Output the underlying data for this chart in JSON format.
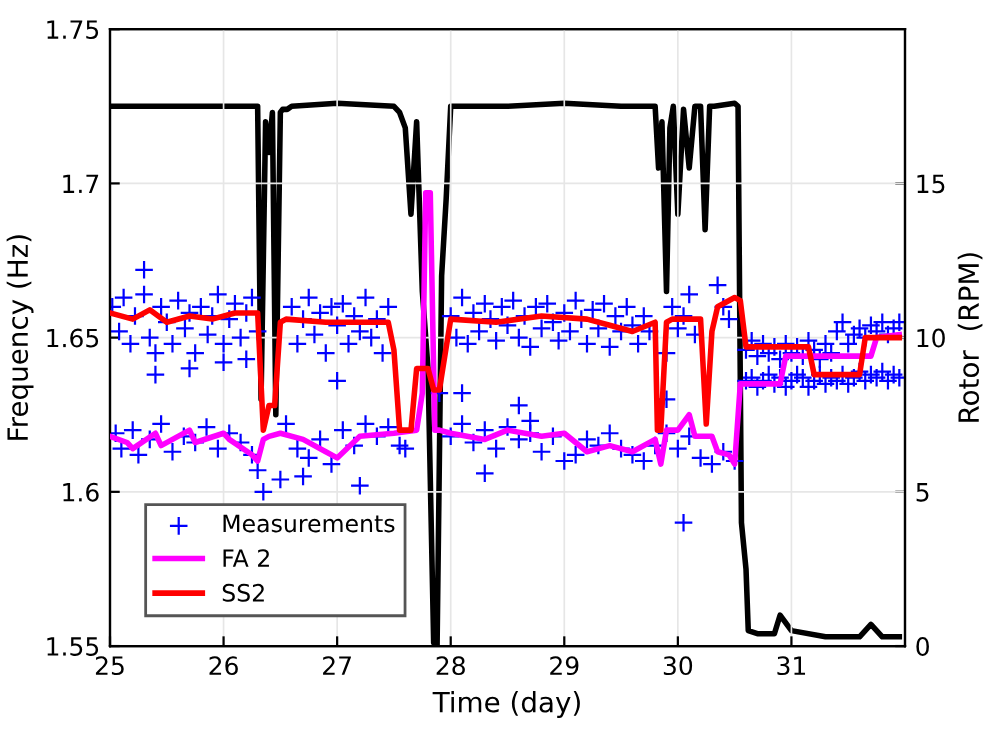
{
  "chart_data": {
    "type": "line",
    "xlabel": "Time (day)",
    "ylabel": "Frequency (Hz)",
    "y2label": "Rotor  (RPM)",
    "xlim": [
      25,
      32
    ],
    "xticks": [
      25,
      26,
      27,
      28,
      29,
      30,
      31
    ],
    "ylim": [
      1.55,
      1.75
    ],
    "yticks": [
      1.55,
      1.6,
      1.65,
      1.7,
      1.75
    ],
    "y2lim": [
      0,
      20
    ],
    "y2ticks": [
      0,
      5,
      10,
      15
    ],
    "grid": true,
    "legend": "bottom left",
    "series": [
      {
        "name": "Measurements",
        "type": "scatter",
        "marker": "cross",
        "color": "#0000ff",
        "x": [
          25.02,
          25.08,
          25.12,
          25.18,
          25.22,
          25.3,
          25.35,
          25.4,
          25.45,
          25.5,
          25.55,
          25.6,
          25.66,
          25.7,
          25.75,
          25.8,
          25.86,
          25.9,
          25.95,
          26.0,
          26.05,
          26.1,
          26.15,
          26.2,
          26.25,
          26.3,
          26.6,
          26.65,
          26.7,
          26.75,
          26.8,
          26.85,
          26.9,
          26.95,
          27.0,
          27.05,
          27.1,
          27.15,
          27.2,
          27.25,
          27.3,
          27.35,
          27.4,
          27.45,
          28.0,
          28.05,
          28.1,
          28.15,
          28.2,
          28.25,
          28.3,
          28.35,
          28.4,
          28.45,
          28.5,
          28.55,
          28.6,
          28.65,
          28.7,
          28.75,
          28.8,
          28.85,
          28.9,
          28.95,
          29.0,
          29.05,
          29.1,
          29.15,
          29.2,
          29.25,
          29.3,
          29.35,
          29.4,
          29.45,
          29.5,
          29.55,
          29.6,
          29.65,
          29.7,
          29.75,
          29.95,
          30.0,
          30.05,
          30.1,
          30.15,
          30.35,
          30.4,
          30.45,
          25.05,
          25.1,
          25.2,
          25.25,
          25.35,
          25.45,
          25.55,
          25.65,
          25.75,
          25.85,
          25.95,
          26.05,
          26.15,
          26.25,
          26.3,
          26.55,
          26.65,
          26.75,
          26.85,
          26.95,
          27.05,
          27.15,
          27.25,
          27.35,
          27.45,
          27.55,
          28.0,
          28.1,
          28.2,
          28.3,
          28.4,
          28.5,
          28.6,
          28.7,
          28.8,
          28.9,
          29.0,
          29.1,
          29.2,
          29.3,
          29.4,
          29.5,
          29.6,
          29.7,
          29.8,
          29.9,
          30.0,
          30.1,
          30.2,
          30.3,
          30.4,
          30.5,
          25.4,
          25.7,
          26.0,
          26.35,
          26.5,
          26.7,
          27.2,
          27.6,
          27.9,
          28.3,
          28.6,
          28.7,
          29.9,
          30.05,
          25.3,
          26.2,
          27.0,
          28.1,
          29.9,
          30.6,
          30.65,
          30.7,
          30.75,
          30.8,
          30.85,
          30.9,
          30.95,
          31.0,
          31.05,
          31.1,
          31.15,
          31.2,
          31.25,
          31.3,
          31.35,
          31.4,
          31.45,
          31.5,
          31.55,
          31.6,
          31.65,
          31.7,
          31.75,
          31.8,
          31.85,
          31.9,
          31.95,
          30.6,
          30.65,
          30.7,
          30.75,
          30.8,
          30.85,
          30.9,
          30.95,
          31.0,
          31.05,
          31.1,
          31.15,
          31.2,
          31.25,
          31.3,
          31.35,
          31.4,
          31.45,
          31.5,
          31.55,
          31.6,
          31.65,
          31.7,
          31.75,
          31.8,
          31.85,
          31.9,
          31.95
        ],
        "values": [
          1.66,
          1.652,
          1.663,
          1.648,
          1.657,
          1.664,
          1.65,
          1.645,
          1.66,
          1.655,
          1.648,
          1.662,
          1.653,
          1.658,
          1.645,
          1.66,
          1.651,
          1.657,
          1.664,
          1.648,
          1.656,
          1.661,
          1.65,
          1.658,
          1.663,
          1.652,
          1.66,
          1.648,
          1.656,
          1.663,
          1.651,
          1.658,
          1.645,
          1.66,
          1.654,
          1.661,
          1.648,
          1.657,
          1.652,
          1.663,
          1.65,
          1.656,
          1.645,
          1.66,
          1.657,
          1.65,
          1.663,
          1.648,
          1.658,
          1.652,
          1.661,
          1.656,
          1.649,
          1.66,
          1.654,
          1.662,
          1.65,
          1.657,
          1.647,
          1.66,
          1.653,
          1.661,
          1.655,
          1.649,
          1.658,
          1.652,
          1.662,
          1.656,
          1.648,
          1.659,
          1.653,
          1.661,
          1.647,
          1.657,
          1.652,
          1.66,
          1.654,
          1.648,
          1.657,
          1.652,
          1.66,
          1.653,
          1.657,
          1.664,
          1.651,
          1.667,
          1.66,
          1.656,
          1.619,
          1.614,
          1.62,
          1.612,
          1.617,
          1.622,
          1.613,
          1.618,
          1.616,
          1.621,
          1.614,
          1.619,
          1.616,
          1.612,
          1.607,
          1.622,
          1.614,
          1.611,
          1.617,
          1.609,
          1.62,
          1.615,
          1.622,
          1.618,
          1.621,
          1.615,
          1.618,
          1.622,
          1.616,
          1.62,
          1.614,
          1.621,
          1.617,
          1.619,
          1.613,
          1.618,
          1.61,
          1.612,
          1.617,
          1.615,
          1.619,
          1.614,
          1.612,
          1.61,
          1.615,
          1.619,
          1.614,
          1.618,
          1.611,
          1.609,
          1.613,
          1.61,
          1.638,
          1.64,
          1.642,
          1.6,
          1.604,
          1.605,
          1.602,
          1.614,
          1.632,
          1.606,
          1.628,
          1.623,
          1.645,
          1.59,
          1.672,
          1.643,
          1.636,
          1.632,
          1.63,
          1.646,
          1.649,
          1.644,
          1.648,
          1.645,
          1.647,
          1.643,
          1.648,
          1.645,
          1.647,
          1.644,
          1.649,
          1.646,
          1.643,
          1.648,
          1.645,
          1.652,
          1.655,
          1.648,
          1.651,
          1.653,
          1.65,
          1.654,
          1.652,
          1.655,
          1.651,
          1.653,
          1.655,
          1.636,
          1.637,
          1.634,
          1.636,
          1.638,
          1.635,
          1.637,
          1.634,
          1.636,
          1.638,
          1.637,
          1.634,
          1.636,
          1.638,
          1.635,
          1.637,
          1.636,
          1.638,
          1.635,
          1.637,
          1.639,
          1.636,
          1.638,
          1.637,
          1.639,
          1.636,
          1.638,
          1.637
        ]
      },
      {
        "name": "FA 2",
        "color": "#ff00ff",
        "x": [
          25,
          25.15,
          25.2,
          25.4,
          25.45,
          25.7,
          25.75,
          26.0,
          26.05,
          26.25,
          26.3,
          26.35,
          26.4,
          26.5,
          26.7,
          26.9,
          27.0,
          27.2,
          27.5,
          27.7,
          27.75,
          27.78,
          27.82,
          27.86,
          27.9,
          28.0,
          28.3,
          28.5,
          28.8,
          29.0,
          29.2,
          29.4,
          29.6,
          29.8,
          29.85,
          29.9,
          30.0,
          30.1,
          30.15,
          30.3,
          30.35,
          30.45,
          30.5,
          30.55,
          30.6,
          30.9,
          30.95,
          31.7,
          31.75,
          31.95
        ],
        "values": [
          1.618,
          1.616,
          1.614,
          1.619,
          1.615,
          1.62,
          1.616,
          1.619,
          1.617,
          1.612,
          1.61,
          1.617,
          1.618,
          1.619,
          1.617,
          1.613,
          1.611,
          1.618,
          1.619,
          1.62,
          1.632,
          1.697,
          1.697,
          1.62,
          1.62,
          1.619,
          1.617,
          1.62,
          1.618,
          1.619,
          1.613,
          1.615,
          1.613,
          1.617,
          1.609,
          1.62,
          1.62,
          1.625,
          1.618,
          1.618,
          1.613,
          1.612,
          1.609,
          1.635,
          1.635,
          1.635,
          1.644,
          1.644,
          1.65,
          1.651
        ]
      },
      {
        "name": "SS2",
        "color": "#ff0000",
        "x": [
          25,
          25.2,
          25.35,
          25.5,
          25.7,
          25.9,
          26.1,
          26.3,
          26.35,
          26.4,
          26.45,
          26.5,
          26.55,
          26.9,
          27.2,
          27.45,
          27.5,
          27.55,
          27.65,
          27.7,
          27.8,
          27.85,
          27.9,
          28.0,
          28.4,
          28.8,
          29.2,
          29.4,
          29.6,
          29.8,
          29.82,
          29.85,
          29.9,
          29.95,
          30.2,
          30.25,
          30.3,
          30.35,
          30.5,
          30.55,
          30.6,
          31.15,
          31.2,
          31.6,
          31.65,
          31.95
        ],
        "values": [
          1.658,
          1.656,
          1.659,
          1.655,
          1.657,
          1.656,
          1.658,
          1.658,
          1.62,
          1.628,
          1.628,
          1.655,
          1.656,
          1.655,
          1.655,
          1.655,
          1.646,
          1.62,
          1.62,
          1.64,
          1.64,
          1.633,
          1.633,
          1.656,
          1.655,
          1.657,
          1.656,
          1.654,
          1.652,
          1.655,
          1.62,
          1.62,
          1.655,
          1.656,
          1.656,
          1.622,
          1.652,
          1.66,
          1.663,
          1.662,
          1.647,
          1.647,
          1.638,
          1.638,
          1.65,
          1.65
        ]
      },
      {
        "axis": "y2",
        "color": "#000000",
        "x": [
          25,
          25.5,
          26.0,
          26.3,
          26.33,
          26.37,
          26.4,
          26.43,
          26.46,
          26.5,
          26.52,
          26.56,
          26.6,
          27.0,
          27.5,
          27.55,
          27.6,
          27.65,
          27.7,
          27.75,
          27.8,
          27.85,
          27.88,
          27.92,
          27.96,
          28.0,
          28.5,
          29.0,
          29.5,
          29.8,
          29.83,
          29.86,
          29.9,
          29.93,
          29.96,
          30.0,
          30.05,
          30.1,
          30.15,
          30.2,
          30.24,
          30.28,
          30.32,
          30.5,
          30.53,
          30.56,
          30.6,
          30.62,
          30.7,
          30.85,
          30.9,
          31.0,
          31.3,
          31.6,
          31.7,
          31.8,
          31.95
        ],
        "values": [
          17.5,
          17.5,
          17.5,
          17.5,
          8,
          17,
          16,
          17.3,
          7.5,
          17.3,
          17.4,
          17.4,
          17.5,
          17.6,
          17.5,
          17.3,
          16.8,
          14,
          17,
          11.5,
          9,
          0.1,
          0,
          12,
          14.5,
          17.5,
          17.5,
          17.6,
          17.5,
          17.5,
          15.5,
          17,
          11.5,
          16.8,
          17.5,
          14,
          17.4,
          15.5,
          17.5,
          17.5,
          13.5,
          17.5,
          17.5,
          17.6,
          17.5,
          4,
          2.5,
          0.5,
          0.4,
          0.4,
          1,
          0.5,
          0.3,
          0.3,
          0.7,
          0.3,
          0.3
        ]
      }
    ]
  }
}
